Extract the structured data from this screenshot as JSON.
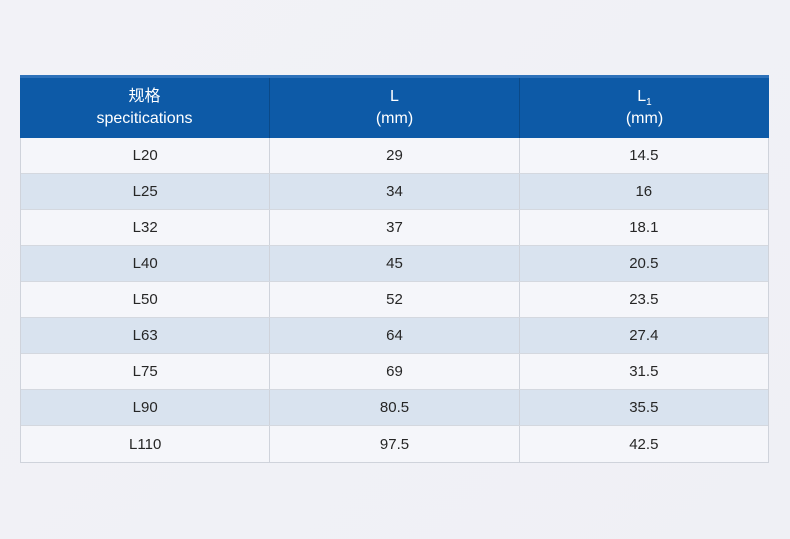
{
  "page": {
    "background_color": "#f0f1f6"
  },
  "table_style": {
    "header_color": "#0d5aa7",
    "header_top_border_color": "#2e72ba",
    "row_odd_color": "#f5f6fa",
    "row_even_color": "#d9e3ef",
    "header_text_color": "#ffffff",
    "body_text_color": "#262626"
  },
  "chart_data": {
    "type": "table",
    "title": "",
    "header": {
      "col1_line1": "规格",
      "col1_line2": "specitications",
      "col2_line1": "L",
      "col2_line2": "(mm)",
      "col3_line1_main": "L",
      "col3_line1_sub": "1",
      "col3_line2": "(mm)"
    },
    "columns": [
      "规格 specitications",
      "L (mm)",
      "L1 (mm)"
    ],
    "rows": [
      [
        "L20",
        "29",
        "14.5"
      ],
      [
        "L25",
        "34",
        "16"
      ],
      [
        "L32",
        "37",
        "18.1"
      ],
      [
        "L40",
        "45",
        "20.5"
      ],
      [
        "L50",
        "52",
        "23.5"
      ],
      [
        "L63",
        "64",
        "27.4"
      ],
      [
        "L75",
        "69",
        "31.5"
      ],
      [
        "L90",
        "80.5",
        "35.5"
      ],
      [
        "L110",
        "97.5",
        "42.5"
      ]
    ]
  }
}
